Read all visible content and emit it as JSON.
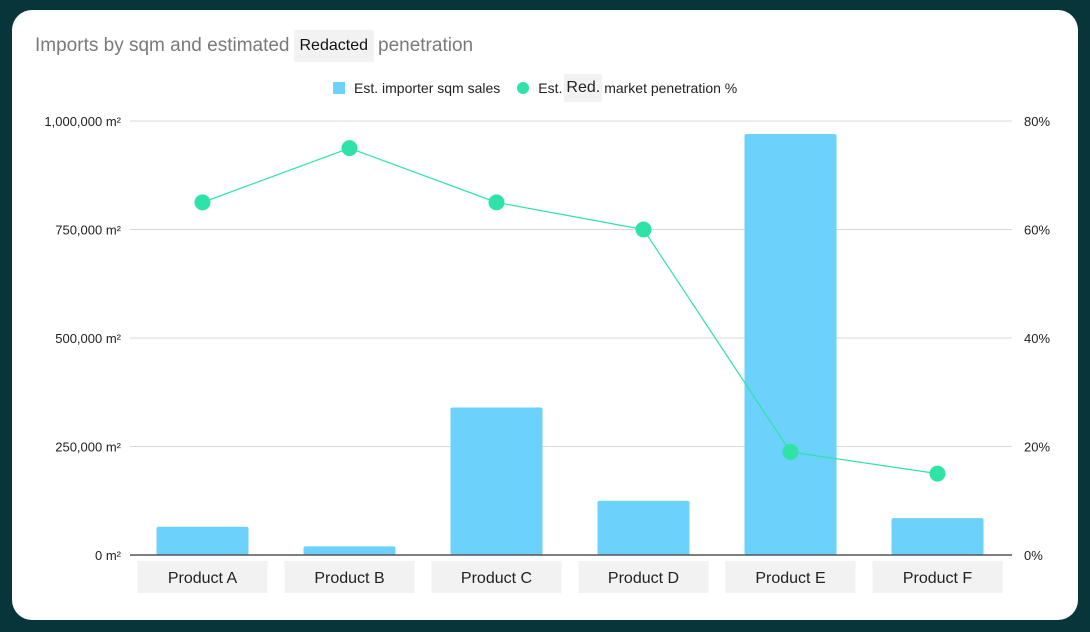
{
  "chart_data": {
    "type": "bar+line",
    "title_parts": [
      "Imports by sqm and estimated",
      "Redacted",
      "penetration"
    ],
    "categories": [
      "Product A",
      "Product B",
      "Product C",
      "Product D",
      "Product E",
      "Product F"
    ],
    "series": [
      {
        "name": "Est. importer sqm sales",
        "type": "bar",
        "axis": "left",
        "color": "#6cd1fb",
        "values": [
          65000,
          20000,
          340000,
          125000,
          970000,
          85000
        ]
      },
      {
        "name_parts": [
          "Est.",
          "Red.",
          "market penetration %"
        ],
        "type": "line",
        "axis": "right",
        "color": "#2ee3a5",
        "values": [
          65,
          75,
          65,
          60,
          19,
          15
        ]
      }
    ],
    "y_left": {
      "range": [
        0,
        1000000
      ],
      "ticks": [
        "0 m²",
        "250,000 m²",
        "500,000 m²",
        "750,000 m²",
        "1,000,000 m²"
      ]
    },
    "y_right": {
      "range": [
        0,
        80
      ],
      "ticks": [
        "0%",
        "20%",
        "40%",
        "60%",
        "80%"
      ]
    },
    "grid": true,
    "legend": "top"
  }
}
